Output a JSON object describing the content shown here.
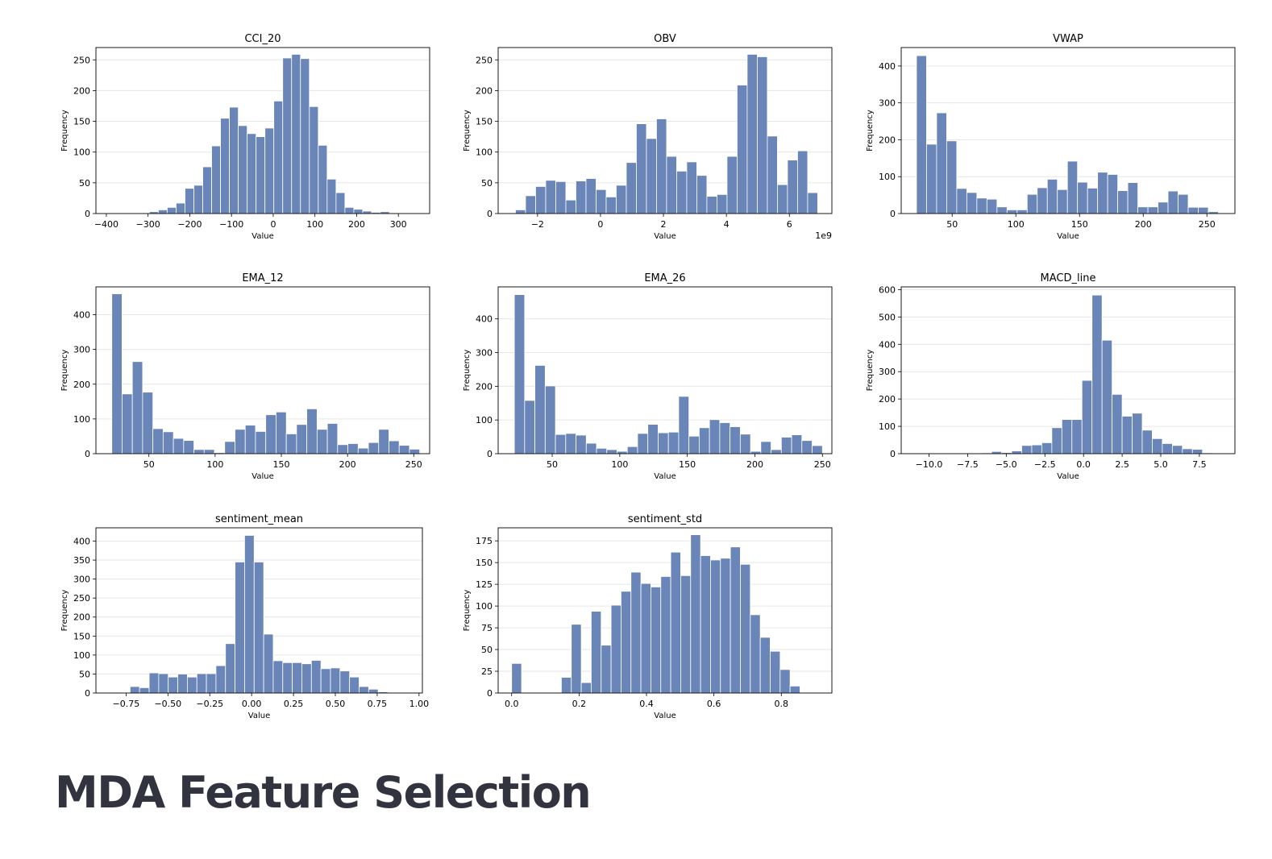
{
  "page": {
    "heading": "MDA Feature Selection",
    "bar_color": "#6a85b8",
    "bar_edge_color": "#ffffff"
  },
  "chart_data": [
    {
      "type": "bar",
      "title": "CCI_20",
      "xlabel": "Value",
      "ylabel": "Frequency",
      "bin_start": -296.7,
      "bin_width": 21.3,
      "values": [
        3,
        6,
        10,
        17,
        41,
        46,
        76,
        110,
        155,
        173,
        143,
        130,
        125,
        139,
        183,
        253,
        259,
        252,
        174,
        111,
        56,
        34,
        10,
        7,
        4,
        2,
        3
      ],
      "xlim": [
        -425,
        375
      ],
      "ylim": [
        0,
        270
      ],
      "xticks": [
        -400,
        -300,
        -200,
        -100,
        0,
        100,
        200,
        300
      ],
      "xtick_labels": [
        "−400",
        "−300",
        "−200",
        "−100",
        "0",
        "100",
        "200",
        "300"
      ],
      "yticks": [
        0,
        50,
        100,
        150,
        200,
        250
      ],
      "ytick_labels": [
        "0",
        "50",
        "100",
        "150",
        "200",
        "250"
      ],
      "grid": "y"
    },
    {
      "type": "bar",
      "title": "OBV",
      "xlabel": "Value",
      "ylabel": "Frequency",
      "axis_multiplier": "1e9",
      "bin_start": -2.7,
      "bin_width": 0.32,
      "values": [
        6,
        29,
        44,
        54,
        52,
        22,
        53,
        57,
        39,
        27,
        46,
        83,
        146,
        122,
        154,
        93,
        69,
        84,
        62,
        28,
        31,
        93,
        209,
        259,
        255,
        126,
        47,
        87,
        102,
        34
      ],
      "xlim": [
        -3.25,
        7.35
      ],
      "ylim": [
        0,
        270
      ],
      "xticks": [
        -2,
        0,
        2,
        4,
        6
      ],
      "xtick_labels": [
        "−2",
        "0",
        "2",
        "4",
        "6"
      ],
      "yticks": [
        0,
        50,
        100,
        150,
        200,
        250
      ],
      "ytick_labels": [
        "0",
        "50",
        "100",
        "150",
        "200",
        "250"
      ],
      "grid": "y"
    },
    {
      "type": "bar",
      "title": "VWAP",
      "xlabel": "Value",
      "ylabel": "Frequency",
      "bin_start": 22,
      "bin_width": 7.9,
      "values": [
        428,
        188,
        273,
        197,
        68,
        57,
        42,
        39,
        18,
        10,
        10,
        52,
        70,
        93,
        65,
        142,
        85,
        69,
        112,
        106,
        62,
        84,
        18,
        18,
        31,
        61,
        52,
        17,
        17,
        5
      ],
      "xlim": [
        10,
        272
      ],
      "ylim": [
        0,
        450
      ],
      "xticks": [
        50,
        100,
        150,
        200,
        250
      ],
      "xtick_labels": [
        "50",
        "100",
        "150",
        "200",
        "250"
      ],
      "yticks": [
        0,
        100,
        200,
        300,
        400
      ],
      "ytick_labels": [
        "0",
        "100",
        "200",
        "300",
        "400"
      ],
      "grid": "y"
    },
    {
      "type": "bar",
      "title": "EMA_12",
      "xlabel": "Value",
      "ylabel": "Frequency",
      "bin_start": 22,
      "bin_width": 7.75,
      "values": [
        460,
        172,
        265,
        177,
        72,
        63,
        44,
        38,
        12,
        12,
        3,
        35,
        70,
        82,
        64,
        112,
        120,
        57,
        84,
        129,
        70,
        87,
        26,
        29,
        16,
        32,
        70,
        37,
        24,
        13
      ],
      "xlim": [
        10,
        262
      ],
      "ylim": [
        0,
        480
      ],
      "xticks": [
        50,
        100,
        150,
        200,
        250
      ],
      "xtick_labels": [
        "50",
        "100",
        "150",
        "200",
        "250"
      ],
      "yticks": [
        0,
        100,
        200,
        300,
        400
      ],
      "ytick_labels": [
        "0",
        "100",
        "200",
        "300",
        "400"
      ],
      "grid": "y"
    },
    {
      "type": "bar",
      "title": "EMA_26",
      "xlabel": "Value",
      "ylabel": "Frequency",
      "bin_start": 22,
      "bin_width": 7.6,
      "values": [
        472,
        158,
        262,
        201,
        57,
        60,
        55,
        31,
        16,
        12,
        7,
        21,
        60,
        87,
        62,
        64,
        170,
        52,
        77,
        101,
        92,
        80,
        58,
        7,
        36,
        12,
        49,
        56,
        39,
        24
      ],
      "xlim": [
        10,
        257
      ],
      "ylim": [
        0,
        495
      ],
      "xticks": [
        50,
        100,
        150,
        200,
        250
      ],
      "xtick_labels": [
        "50",
        "100",
        "150",
        "200",
        "250"
      ],
      "yticks": [
        0,
        100,
        200,
        300,
        400
      ],
      "ytick_labels": [
        "0",
        "100",
        "200",
        "300",
        "400"
      ],
      "grid": "y"
    },
    {
      "type": "bar",
      "title": "MACD_line",
      "xlabel": "Value",
      "ylabel": "Frequency",
      "bin_start": -10.5,
      "bin_width": 0.65,
      "values": [
        1,
        1,
        1,
        1,
        1,
        2,
        3,
        8,
        4,
        10,
        30,
        32,
        40,
        95,
        125,
        125,
        268,
        580,
        415,
        217,
        137,
        148,
        86,
        55,
        37,
        30,
        18,
        16,
        3,
        2
      ],
      "xlim": [
        -11.8,
        9.8
      ],
      "ylim": [
        0,
        610
      ],
      "xticks": [
        -10,
        -7.5,
        -5,
        -2.5,
        0,
        2.5,
        5,
        7.5
      ],
      "xtick_labels": [
        "−10.0",
        "−7.5",
        "−5.0",
        "−2.5",
        "0.0",
        "2.5",
        "5.0",
        "7.5"
      ],
      "yticks": [
        0,
        100,
        200,
        300,
        400,
        500,
        600
      ],
      "ytick_labels": [
        "0",
        "100",
        "200",
        "300",
        "400",
        "500",
        "600"
      ],
      "grid": "y"
    },
    {
      "type": "bar",
      "title": "sentiment_mean",
      "xlabel": "Value",
      "ylabel": "Frequency",
      "bin_start": -0.84,
      "bin_width": 0.057,
      "values": [
        2,
        0,
        17,
        14,
        53,
        51,
        42,
        50,
        42,
        51,
        51,
        72,
        130,
        345,
        415,
        345,
        155,
        85,
        80,
        80,
        77,
        86,
        64,
        66,
        58,
        42,
        17,
        10,
        3
      ],
      "xlim": [
        -0.93,
        1.02
      ],
      "ylim": [
        0,
        435
      ],
      "xticks": [
        -0.75,
        -0.5,
        -0.25,
        0,
        0.25,
        0.5,
        0.75,
        1
      ],
      "xtick_labels": [
        "−0.75",
        "−0.50",
        "−0.25",
        "0.00",
        "0.25",
        "0.50",
        "0.75",
        "1.00"
      ],
      "yticks": [
        0,
        50,
        100,
        150,
        200,
        250,
        300,
        350,
        400
      ],
      "ytick_labels": [
        "0",
        "50",
        "100",
        "150",
        "200",
        "250",
        "300",
        "350",
        "400"
      ],
      "grid": "y"
    },
    {
      "type": "bar",
      "title": "sentiment_std",
      "xlabel": "Value",
      "ylabel": "Frequency",
      "bin_start": 0,
      "bin_width": 0.0295,
      "values": [
        34,
        0,
        0,
        0,
        0,
        18,
        79,
        12,
        94,
        55,
        101,
        117,
        139,
        126,
        122,
        134,
        162,
        135,
        182,
        158,
        153,
        155,
        168,
        148,
        90,
        64,
        48,
        27,
        8
      ],
      "xlim": [
        -0.04,
        0.95
      ],
      "ylim": [
        0,
        190
      ],
      "xticks": [
        0,
        0.2,
        0.4,
        0.6,
        0.8
      ],
      "xtick_labels": [
        "0.0",
        "0.2",
        "0.4",
        "0.6",
        "0.8"
      ],
      "yticks": [
        0,
        25,
        50,
        75,
        100,
        125,
        150,
        175
      ],
      "ytick_labels": [
        "0",
        "25",
        "50",
        "75",
        "100",
        "125",
        "150",
        "175"
      ],
      "grid": "y"
    }
  ]
}
